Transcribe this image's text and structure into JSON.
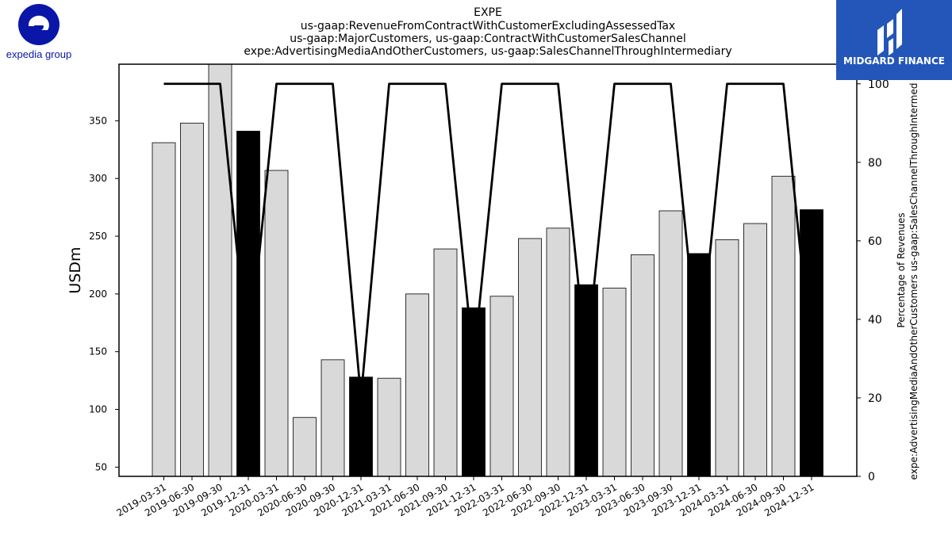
{
  "colors": {
    "bar_default": "#d9d9d9",
    "bar_highlight": "#000000",
    "line": "#000000",
    "expedia_blue": "#0a16a8",
    "midgard_bg": "#2356b8"
  },
  "logos": {
    "left": {
      "text": "expedia group",
      "icon": "expedia-e-logo"
    },
    "right": {
      "text": "MIDGARD FINANCE",
      "icon": "midgard-logo"
    }
  },
  "chart_data": {
    "type": "bar",
    "title": [
      "EXPE",
      "us-gaap:RevenueFromContractWithCustomerExcludingAssessedTax",
      "us-gaap:MajorCustomers, us-gaap:ContractWithCustomerSalesChannel",
      "expe:AdvertisingMediaAndOtherCustomers, us-gaap:SalesChannelThroughIntermediary"
    ],
    "ylabel": "USDm",
    "ylabel_right": [
      "Percentage of Revenues",
      "expe:AdvertisingMediaAndOtherCustomers us-gaap:SalesChannelThroughIntermed"
    ],
    "ylim": [
      42,
      399
    ],
    "yticks": [
      50,
      100,
      150,
      200,
      250,
      300,
      350
    ],
    "ylim_right": [
      0,
      105
    ],
    "yticks_right": [
      0,
      20,
      40,
      60,
      80,
      100
    ],
    "categories": [
      "2019-03-31",
      "2019-06-30",
      "2019-09-30",
      "2019-12-31",
      "2020-03-31",
      "2020-06-30",
      "2020-09-30",
      "2020-12-31",
      "2021-03-31",
      "2021-06-30",
      "2021-09-30",
      "2021-12-31",
      "2022-03-31",
      "2022-06-30",
      "2022-09-30",
      "2022-12-31",
      "2023-03-31",
      "2023-06-30",
      "2023-09-30",
      "2023-12-31",
      "2024-03-31",
      "2024-06-30",
      "2024-09-30",
      "2024-12-31"
    ],
    "values": [
      331,
      348,
      414,
      341,
      307,
      93,
      143,
      128,
      127,
      200,
      239,
      188,
      198,
      248,
      257,
      208,
      205,
      234,
      272,
      235,
      247,
      261,
      302,
      273
    ],
    "highlight": [
      false,
      false,
      false,
      true,
      false,
      false,
      false,
      true,
      false,
      false,
      false,
      true,
      false,
      false,
      false,
      true,
      false,
      false,
      false,
      true,
      false,
      false,
      false,
      true
    ],
    "series": [
      {
        "axis": "right",
        "type": "line",
        "values": [
          100,
          100,
          100,
          29,
          100,
          100,
          100,
          20,
          100,
          100,
          100,
          29,
          100,
          100,
          100,
          29,
          100,
          100,
          100,
          29,
          100,
          100,
          100,
          29
        ]
      }
    ],
    "grid": false
  }
}
